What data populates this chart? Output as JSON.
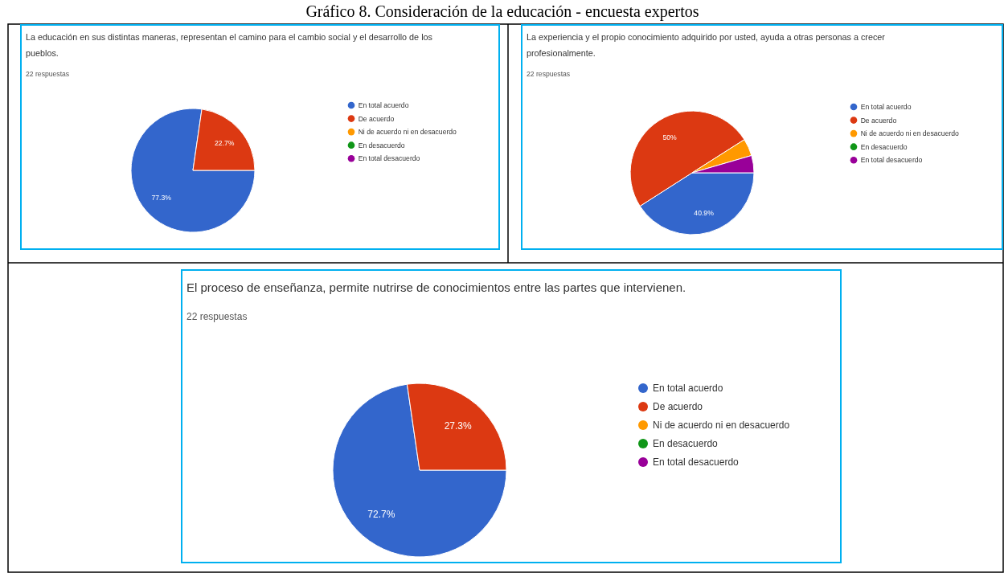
{
  "chart_data": [
    {
      "type": "other",
      "title": "Gráfico 8. Consideración de la educación - encuesta expertos"
    },
    {
      "type": "pie",
      "title": "La educación en sus distintas maneras, representan el camino para el cambio social y el desarrollo de los pueblos.",
      "subtitle": "22 respuestas",
      "categories": [
        "En total acuerdo",
        "De acuerdo",
        "Ni de acuerdo ni en desacuerdo",
        "En desacuerdo",
        "En total desacuerdo"
      ],
      "values": [
        77.3,
        22.7,
        0,
        0,
        0
      ],
      "colors": [
        "#3366cc",
        "#dc3912",
        "#ff9900",
        "#109618",
        "#990099"
      ],
      "value_labels": [
        "77.3%",
        "22.7%",
        null,
        null,
        null
      ],
      "legend": "right"
    },
    {
      "type": "pie",
      "title": "La experiencia y el propio conocimiento adquirido por usted, ayuda a otras personas a crecer profesionalmente.",
      "subtitle": "22 respuestas",
      "categories": [
        "En total acuerdo",
        "De acuerdo",
        "Ni de acuerdo ni en desacuerdo",
        "En desacuerdo",
        "En total desacuerdo"
      ],
      "values": [
        40.9,
        50,
        4.5,
        0,
        4.5
      ],
      "colors": [
        "#3366cc",
        "#dc3912",
        "#ff9900",
        "#109618",
        "#990099"
      ],
      "value_labels": [
        "40.9%",
        "50%",
        null,
        null,
        null
      ],
      "legend": "right"
    },
    {
      "type": "pie",
      "title": "El proceso de enseñanza, permite nutrirse de conocimientos entre las partes que intervienen.",
      "subtitle": "22 respuestas",
      "categories": [
        "En total acuerdo",
        "De acuerdo",
        "Ni de acuerdo ni en desacuerdo",
        "En desacuerdo",
        "En total desacuerdo"
      ],
      "values": [
        72.7,
        27.3,
        0,
        0,
        0
      ],
      "colors": [
        "#3366cc",
        "#dc3912",
        "#ff9900",
        "#109618",
        "#990099"
      ],
      "value_labels": [
        "72.7%",
        "27.3%",
        null,
        null,
        null
      ],
      "legend": "right"
    }
  ]
}
